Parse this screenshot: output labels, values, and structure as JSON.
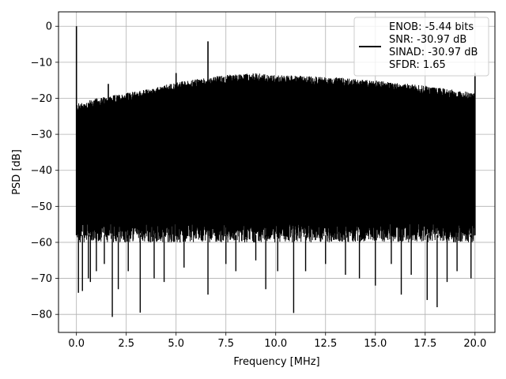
{
  "chart_data": {
    "type": "line",
    "title": "",
    "xlabel": "Frequency [MHz]",
    "ylabel": "PSD [dB]",
    "xlim": [
      -0.9,
      21.0
    ],
    "ylim": [
      -85,
      4
    ],
    "x_ticks": [
      0.0,
      2.5,
      5.0,
      7.5,
      10.0,
      12.5,
      15.0,
      17.5,
      20.0
    ],
    "x_tick_labels": [
      "0.0",
      "2.5",
      "5.0",
      "7.5",
      "10.0",
      "12.5",
      "15.0",
      "17.5",
      "20.0"
    ],
    "y_ticks": [
      0,
      -10,
      -20,
      -30,
      -40,
      -50,
      -60,
      -70,
      -80
    ],
    "y_tick_labels": [
      "0",
      "−10",
      "−20",
      "−30",
      "−40",
      "−50",
      "−60",
      "−70",
      "−80"
    ],
    "grid": true,
    "legend_position": "top-right",
    "line_color": "#000000",
    "series": [
      {
        "legend_lines": [
          "ENOB: -5.44 bits",
          "SNR: -30.97 dB",
          "SINAD: -30.97 dB",
          "SFDR: 1.65"
        ],
        "x_range": [
          0.0,
          20.0
        ],
        "envelope_top": {
          "x": [
            0.0,
            1.0,
            2.5,
            4.0,
            5.0,
            7.5,
            9.0,
            10.0,
            12.5,
            15.0,
            17.5,
            20.0
          ],
          "y": [
            -24,
            -22.5,
            -21,
            -19.5,
            -18,
            -16,
            -15.5,
            -16,
            -16.5,
            -17.5,
            -19,
            -21
          ]
        },
        "envelope_floor": -58,
        "peaks": [
          {
            "x": 0.0,
            "y": 0.0
          },
          {
            "x": 1.6,
            "y": -16.0
          },
          {
            "x": 5.0,
            "y": -13.0
          },
          {
            "x": 6.6,
            "y": -4.2
          },
          {
            "x": 20.0,
            "y": -13.0
          }
        ],
        "dips": [
          {
            "x": 0.1,
            "y": -74
          },
          {
            "x": 0.3,
            "y": -73.5
          },
          {
            "x": 0.6,
            "y": -70
          },
          {
            "x": 0.7,
            "y": -71
          },
          {
            "x": 1.0,
            "y": -68
          },
          {
            "x": 1.4,
            "y": -66
          },
          {
            "x": 1.8,
            "y": -80.7
          },
          {
            "x": 2.1,
            "y": -73
          },
          {
            "x": 2.6,
            "y": -68
          },
          {
            "x": 3.2,
            "y": -79.5
          },
          {
            "x": 3.9,
            "y": -70
          },
          {
            "x": 4.4,
            "y": -71
          },
          {
            "x": 5.4,
            "y": -67
          },
          {
            "x": 6.6,
            "y": -74.5
          },
          {
            "x": 7.5,
            "y": -66
          },
          {
            "x": 8.0,
            "y": -68
          },
          {
            "x": 9.0,
            "y": -65
          },
          {
            "x": 9.5,
            "y": -73
          },
          {
            "x": 10.1,
            "y": -68
          },
          {
            "x": 10.9,
            "y": -79.6
          },
          {
            "x": 11.5,
            "y": -68
          },
          {
            "x": 12.5,
            "y": -66
          },
          {
            "x": 13.5,
            "y": -69
          },
          {
            "x": 14.2,
            "y": -70
          },
          {
            "x": 15.0,
            "y": -72
          },
          {
            "x": 15.8,
            "y": -66
          },
          {
            "x": 16.3,
            "y": -74.5
          },
          {
            "x": 16.8,
            "y": -69
          },
          {
            "x": 17.6,
            "y": -76
          },
          {
            "x": 18.1,
            "y": -78
          },
          {
            "x": 18.6,
            "y": -71
          },
          {
            "x": 19.1,
            "y": -68
          },
          {
            "x": 19.8,
            "y": -70
          }
        ]
      }
    ]
  }
}
